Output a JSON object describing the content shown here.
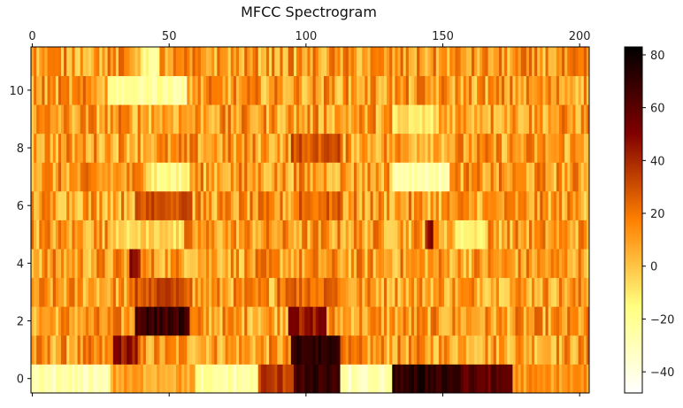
{
  "chart_data": {
    "type": "heatmap",
    "title": "MFCC Spectrogram",
    "xlabel": "",
    "ylabel": "",
    "xlim": [
      -0.5,
      203.5
    ],
    "ylim": [
      -0.5,
      11.5
    ],
    "x_ticks": [
      0,
      50,
      100,
      150,
      200
    ],
    "x_tick_labels": [
      "0",
      "50",
      "100",
      "150",
      "200"
    ],
    "y_ticks": [
      0,
      2,
      4,
      6,
      8,
      10
    ],
    "y_tick_labels": [
      "0",
      "2",
      "4",
      "6",
      "8",
      "10"
    ],
    "x_axis_position": "top",
    "n_frames": 204,
    "n_coefficients": 12,
    "colormap": "afmhot_r",
    "colorbar": {
      "vmin": -48,
      "vmax": 83,
      "ticks": [
        -40,
        -20,
        0,
        20,
        40,
        60,
        80
      ],
      "tick_labels": [
        "−40",
        "−20",
        "0",
        "20",
        "40",
        "60",
        "80"
      ]
    },
    "approx_regions": [
      {
        "coef_range": [
          0,
          0
        ],
        "frame_range": [
          0,
          28
        ],
        "value": -28
      },
      {
        "coef_range": [
          0,
          0
        ],
        "frame_range": [
          29,
          59
        ],
        "value": 8
      },
      {
        "coef_range": [
          0,
          0
        ],
        "frame_range": [
          60,
          82
        ],
        "value": -25
      },
      {
        "coef_range": [
          0,
          0
        ],
        "frame_range": [
          83,
          95
        ],
        "value": 35
      },
      {
        "coef_range": [
          0,
          0
        ],
        "frame_range": [
          96,
          112
        ],
        "value": 68
      },
      {
        "coef_range": [
          0,
          0
        ],
        "frame_range": [
          113,
          131
        ],
        "value": -30
      },
      {
        "coef_range": [
          0,
          0
        ],
        "frame_range": [
          132,
          156
        ],
        "value": 72
      },
      {
        "coef_range": [
          0,
          0
        ],
        "frame_range": [
          157,
          175
        ],
        "value": 58
      },
      {
        "coef_range": [
          0,
          0
        ],
        "frame_range": [
          176,
          203
        ],
        "value": 12
      },
      {
        "coef_range": [
          1,
          1
        ],
        "frame_range": [
          30,
          38
        ],
        "value": 45
      },
      {
        "coef_range": [
          1,
          1
        ],
        "frame_range": [
          95,
          112
        ],
        "value": 72
      },
      {
        "coef_range": [
          2,
          2
        ],
        "frame_range": [
          38,
          57
        ],
        "value": 68
      },
      {
        "coef_range": [
          2,
          2
        ],
        "frame_range": [
          94,
          107
        ],
        "value": 45
      },
      {
        "coef_range": [
          3,
          3
        ],
        "frame_range": [
          38,
          58
        ],
        "value": 30
      },
      {
        "coef_range": [
          3,
          3
        ],
        "frame_range": [
          90,
          112
        ],
        "value": 22
      },
      {
        "coef_range": [
          4,
          4
        ],
        "frame_range": [
          36,
          39
        ],
        "value": 45
      },
      {
        "coef_range": [
          5,
          5
        ],
        "frame_range": [
          28,
          55
        ],
        "value": -5
      },
      {
        "coef_range": [
          5,
          5
        ],
        "frame_range": [
          144,
          146
        ],
        "value": 45
      },
      {
        "coef_range": [
          5,
          5
        ],
        "frame_range": [
          155,
          165
        ],
        "value": -15
      },
      {
        "coef_range": [
          6,
          6
        ],
        "frame_range": [
          38,
          58
        ],
        "value": 30
      },
      {
        "coef_range": [
          6,
          6
        ],
        "frame_range": [
          96,
          112
        ],
        "value": 25
      },
      {
        "coef_range": [
          7,
          7
        ],
        "frame_range": [
          44,
          57
        ],
        "value": -15
      },
      {
        "coef_range": [
          7,
          7
        ],
        "frame_range": [
          132,
          152
        ],
        "value": -25
      },
      {
        "coef_range": [
          8,
          8
        ],
        "frame_range": [
          95,
          112
        ],
        "value": 28
      },
      {
        "coef_range": [
          9,
          9
        ],
        "frame_range": [
          132,
          148
        ],
        "value": -10
      },
      {
        "coef_range": [
          10,
          10
        ],
        "frame_range": [
          28,
          56
        ],
        "value": -22
      },
      {
        "coef_range": [
          11,
          11
        ],
        "frame_range": [
          40,
          46
        ],
        "value": -20
      }
    ],
    "base_value": 10
  }
}
